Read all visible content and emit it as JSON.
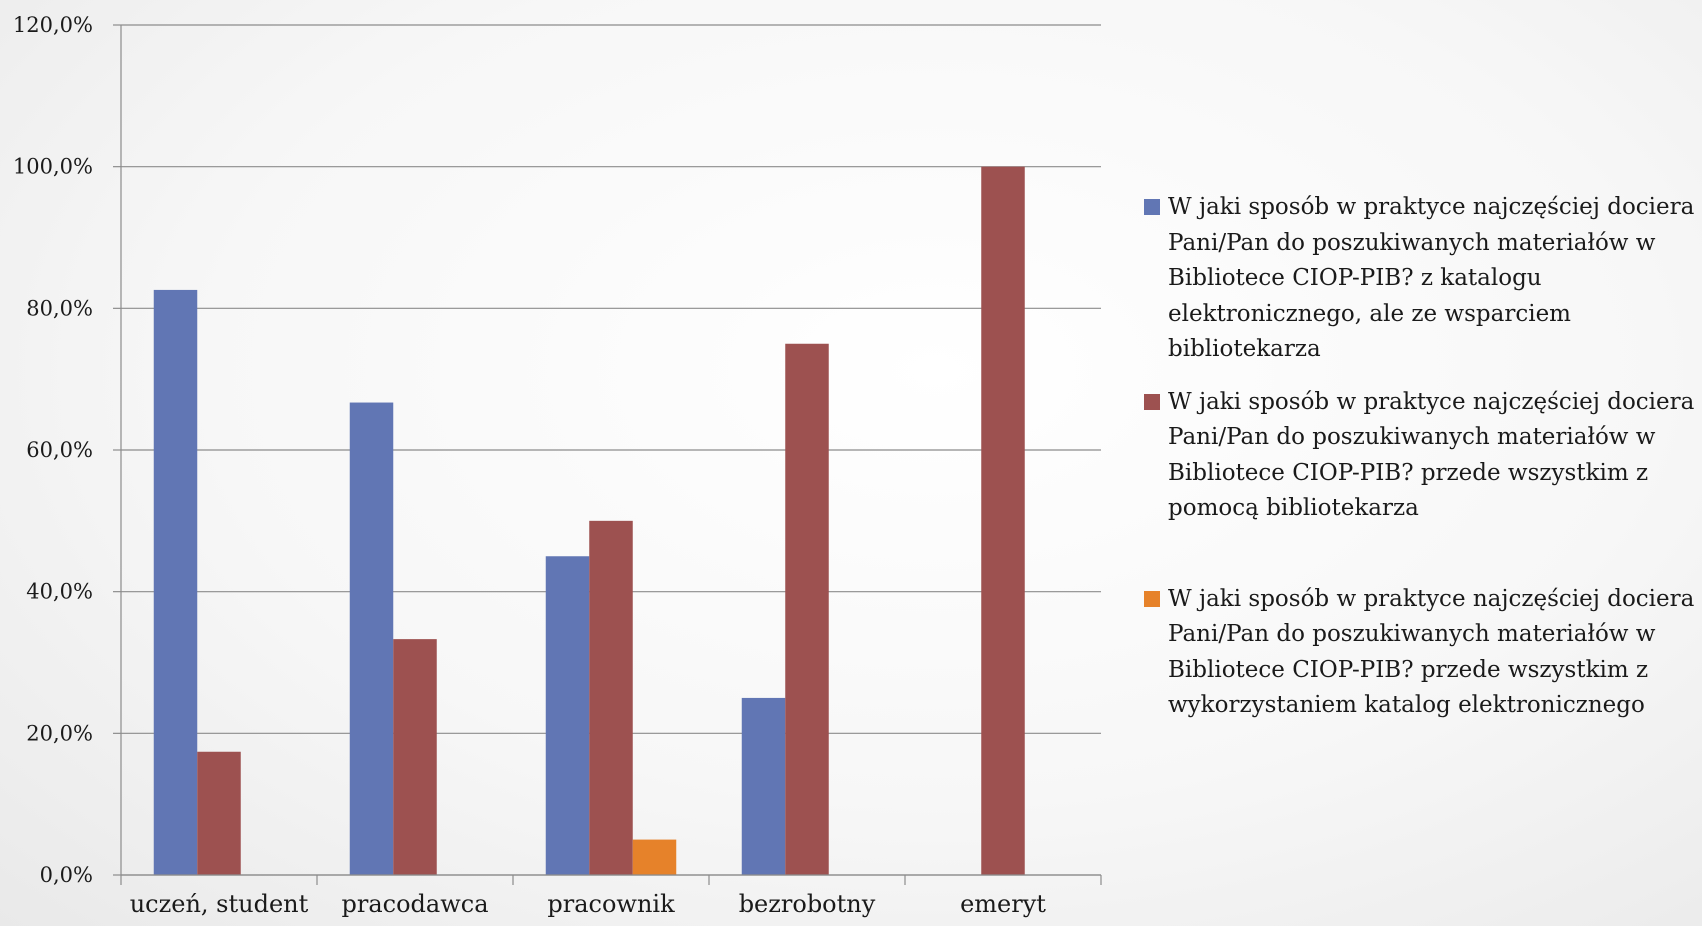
{
  "chart_data": {
    "type": "bar",
    "title": "",
    "xlabel": "",
    "ylabel": "",
    "ylim": [
      0,
      120
    ],
    "y_ticks": [
      "0,0%",
      "20,0%",
      "40,0%",
      "60,0%",
      "80,0%",
      "100,0%",
      "120,0%"
    ],
    "y_tick_values": [
      0,
      20,
      40,
      60,
      80,
      100,
      120
    ],
    "grid": true,
    "legend_position": "right",
    "categories": [
      "uczeń, student",
      "pracodawca",
      "pracownik",
      "bezrobotny",
      "emeryt"
    ],
    "series": [
      {
        "name": "W jaki sposób w praktyce najczęściej dociera Pani/Pan do poszukiwanych materiałów w Bibliotece CIOP-PIB? z katalogu elektronicznego, ale ze wsparciem bibliotekarza",
        "color": "#6176b4",
        "values": [
          82.6,
          66.7,
          45.0,
          25.0,
          0
        ]
      },
      {
        "name": "W jaki sposób w praktyce najczęściej dociera Pani/Pan do poszukiwanych materiałów w Bibliotece CIOP-PIB? przede wszystkim z pomocą bibliotekarza",
        "color": "#9d5150",
        "values": [
          17.4,
          33.3,
          50.0,
          75.0,
          100.0
        ]
      },
      {
        "name": "W jaki sposób w praktyce najczęściej dociera Pani/Pan do poszukiwanych materiałów w Bibliotece CIOP-PIB? przede wszystkim z wykorzystaniem katalog elektronicznego",
        "color": "#e6822a",
        "values": [
          0,
          0,
          5.0,
          0,
          0
        ]
      }
    ],
    "colors": {
      "grid": "#8c8c8c",
      "axis": "#8c8c8c"
    }
  }
}
